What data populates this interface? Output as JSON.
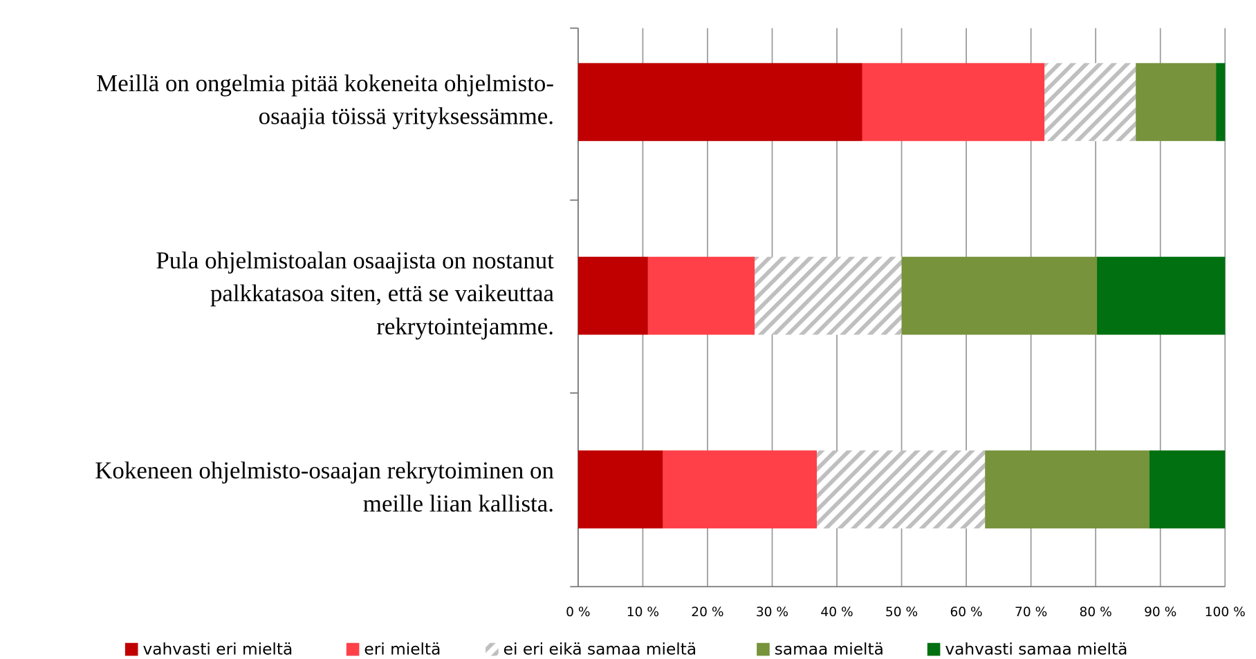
{
  "chart_data": {
    "type": "stacked-bar-horizontal",
    "categories": [
      [
        "Meillä on ongelmia pitää kokeneita ohjelmisto-",
        "osaajia töissä yrityksessämme."
      ],
      [
        "Pula ohjelmistoalan osaajista on nostanut",
        "palkkatasoa siten, että se vaikeuttaa",
        "rekrytointejamme."
      ],
      [
        "Kokeneen ohjelmisto-osaajan rekrytoiminen on",
        "meille liian kallista."
      ]
    ],
    "series": [
      {
        "name": "vahvasti eri mieltä",
        "color": "#c00000",
        "values": [
          43.9,
          10.8,
          13.1
        ]
      },
      {
        "name": "eri mieltä",
        "color": "#ff4048",
        "values": [
          28.2,
          16.5,
          23.8
        ]
      },
      {
        "name": "ei eri eikä samaa mieltä",
        "color": "#bfbfbf",
        "hatch": true,
        "values": [
          14.1,
          22.7,
          26.0
        ]
      },
      {
        "name": "samaa mieltä",
        "color": "#77933c",
        "values": [
          12.4,
          30.2,
          25.4
        ]
      },
      {
        "name": "vahvasti samaa mieltä",
        "color": "#007010",
        "values": [
          1.4,
          19.8,
          11.7
        ]
      }
    ],
    "xlim": [
      0,
      100
    ],
    "xticks": [
      {
        "value": 0,
        "label": "0 %"
      },
      {
        "value": 10,
        "label": "10 %"
      },
      {
        "value": 20,
        "label": "20 %"
      },
      {
        "value": 30,
        "label": "30 %"
      },
      {
        "value": 40,
        "label": "40 %"
      },
      {
        "value": 50,
        "label": "50 %"
      },
      {
        "value": 60,
        "label": "60 %"
      },
      {
        "value": 70,
        "label": "70 %"
      },
      {
        "value": 80,
        "label": "80 %"
      },
      {
        "value": 90,
        "label": "90 %"
      },
      {
        "value": 100,
        "label": "100 %"
      }
    ],
    "grid": true,
    "legend": "bottom"
  }
}
